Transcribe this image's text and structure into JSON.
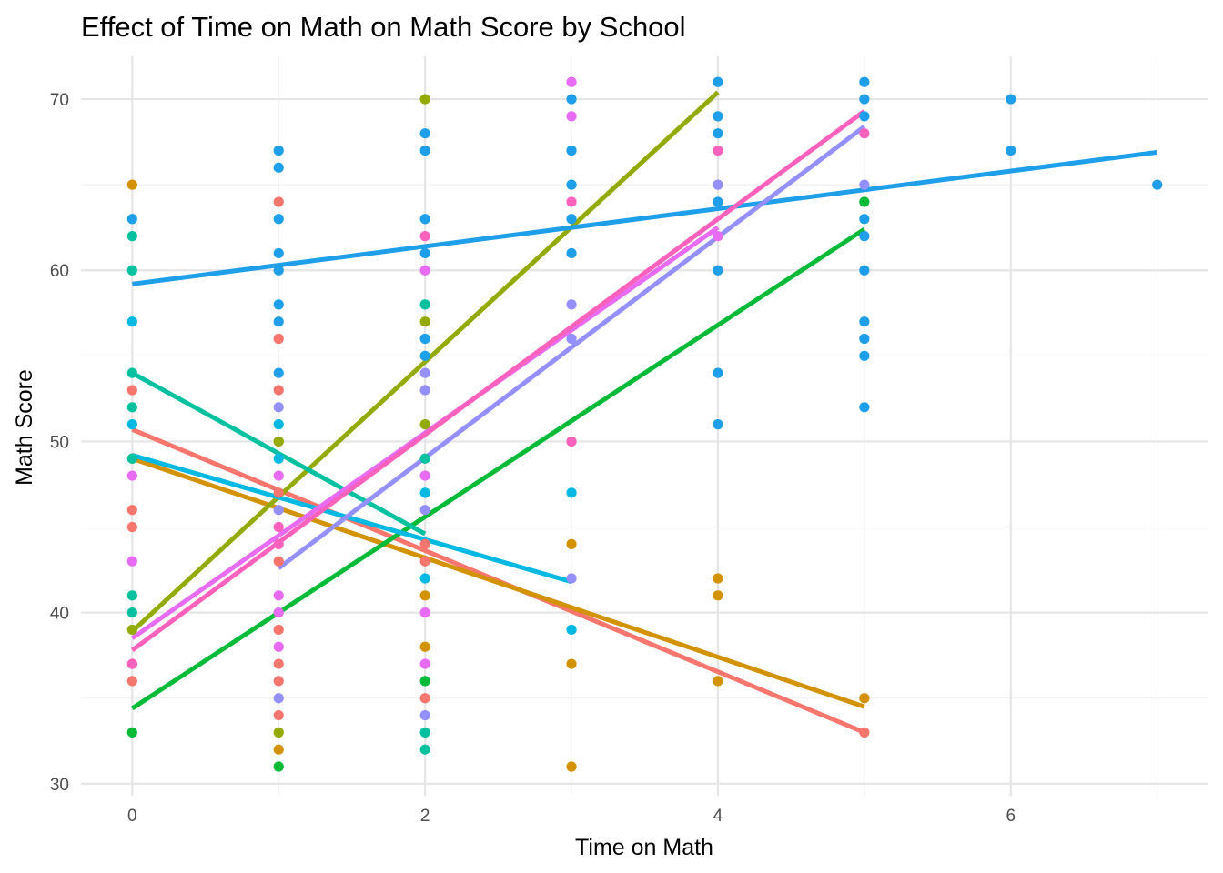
{
  "chart_data": {
    "type": "scatter",
    "title": "Effect of Time on Math on Math Score by School",
    "xlabel": "Time on Math",
    "ylabel": "Math Score",
    "xlim": [
      -0.35,
      7.35
    ],
    "ylim": [
      29.3,
      72.5
    ],
    "x_ticks": [
      0,
      2,
      4,
      6
    ],
    "y_ticks": [
      30,
      40,
      50,
      60,
      70
    ],
    "grid": true,
    "legend": "none",
    "series": [
      {
        "color": "#F8766D",
        "points": [
          [
            0,
            53
          ],
          [
            0,
            46
          ],
          [
            0,
            45
          ],
          [
            0,
            37
          ],
          [
            0,
            36
          ],
          [
            1,
            64
          ],
          [
            1,
            56
          ],
          [
            1,
            53
          ],
          [
            1,
            47
          ],
          [
            1,
            43
          ],
          [
            1,
            39
          ],
          [
            1,
            37
          ],
          [
            1,
            36
          ],
          [
            1,
            34
          ],
          [
            2,
            44
          ],
          [
            2,
            43
          ],
          [
            2,
            35
          ],
          [
            5,
            33
          ]
        ],
        "fit": [
          [
            0,
            50.7
          ],
          [
            5,
            33
          ]
        ]
      },
      {
        "color": "#D39200",
        "points": [
          [
            0,
            65
          ],
          [
            0,
            49
          ],
          [
            1,
            50
          ],
          [
            1,
            32
          ],
          [
            2,
            41
          ],
          [
            2,
            38
          ],
          [
            3,
            44
          ],
          [
            3,
            37
          ],
          [
            3,
            31
          ],
          [
            4,
            42
          ],
          [
            4,
            41
          ],
          [
            4,
            36
          ],
          [
            5,
            35
          ]
        ],
        "fit": [
          [
            0,
            49
          ],
          [
            5,
            34.5
          ]
        ]
      },
      {
        "color": "#93AA00",
        "points": [
          [
            0,
            39
          ],
          [
            1,
            50
          ],
          [
            1,
            33
          ],
          [
            2,
            70
          ],
          [
            2,
            57
          ],
          [
            2,
            51
          ]
        ],
        "fit": [
          [
            0,
            38.9
          ],
          [
            4,
            70.4
          ]
        ]
      },
      {
        "color": "#00BA38",
        "points": [
          [
            0,
            33
          ],
          [
            1,
            31
          ],
          [
            2,
            36
          ],
          [
            5,
            64
          ]
        ],
        "fit": [
          [
            0,
            34.4
          ],
          [
            5,
            62.4
          ]
        ]
      },
      {
        "color": "#00C19F",
        "points": [
          [
            0,
            62
          ],
          [
            0,
            60
          ],
          [
            0,
            54
          ],
          [
            0,
            52
          ],
          [
            0,
            49
          ],
          [
            0,
            41
          ],
          [
            0,
            40
          ],
          [
            2,
            58
          ],
          [
            2,
            49
          ],
          [
            2,
            33
          ],
          [
            2,
            32
          ]
        ],
        "fit": [
          [
            0,
            54
          ],
          [
            2,
            44.6
          ]
        ]
      },
      {
        "color": "#00B9E3",
        "points": [
          [
            0,
            57
          ],
          [
            0,
            51
          ],
          [
            1,
            51
          ],
          [
            1,
            49
          ],
          [
            2,
            47
          ],
          [
            2,
            42
          ],
          [
            3,
            47
          ],
          [
            3,
            39
          ]
        ],
        "fit": [
          [
            0,
            49.2
          ],
          [
            3,
            41.8
          ]
        ]
      },
      {
        "color": "#1F9EEA",
        "points": [
          [
            0,
            63
          ],
          [
            1,
            67
          ],
          [
            1,
            66
          ],
          [
            1,
            63
          ],
          [
            1,
            61
          ],
          [
            1,
            60
          ],
          [
            1,
            58
          ],
          [
            1,
            57
          ],
          [
            1,
            54
          ],
          [
            2,
            68
          ],
          [
            2,
            67
          ],
          [
            2,
            63
          ],
          [
            2,
            61
          ],
          [
            2,
            56
          ],
          [
            2,
            55
          ],
          [
            3,
            70
          ],
          [
            3,
            67
          ],
          [
            3,
            65
          ],
          [
            3,
            63
          ],
          [
            3,
            61
          ],
          [
            4,
            71
          ],
          [
            4,
            69
          ],
          [
            4,
            68
          ],
          [
            4,
            64
          ],
          [
            4,
            60
          ],
          [
            4,
            54
          ],
          [
            4,
            51
          ],
          [
            5,
            71
          ],
          [
            5,
            70
          ],
          [
            5,
            69
          ],
          [
            5,
            63
          ],
          [
            5,
            62
          ],
          [
            5,
            60
          ],
          [
            5,
            57
          ],
          [
            5,
            56
          ],
          [
            5,
            55
          ],
          [
            5,
            52
          ],
          [
            6,
            70
          ],
          [
            6,
            67
          ],
          [
            7,
            65
          ]
        ],
        "fit": [
          [
            0,
            59.2
          ],
          [
            7,
            66.9
          ]
        ]
      },
      {
        "color": "#9590FF",
        "points": [
          [
            1,
            52
          ],
          [
            1,
            46
          ],
          [
            1,
            35
          ],
          [
            2,
            54
          ],
          [
            2,
            53
          ],
          [
            2,
            46
          ],
          [
            2,
            34
          ],
          [
            3,
            58
          ],
          [
            3,
            56
          ],
          [
            3,
            42
          ],
          [
            4,
            65
          ],
          [
            5,
            65
          ]
        ],
        "fit": [
          [
            1,
            42.6
          ],
          [
            5,
            68.4
          ]
        ]
      },
      {
        "color": "#E76BF3",
        "points": [
          [
            0,
            48
          ],
          [
            0,
            43
          ],
          [
            1,
            48
          ],
          [
            1,
            41
          ],
          [
            1,
            40
          ],
          [
            1,
            38
          ],
          [
            2,
            60
          ],
          [
            2,
            48
          ],
          [
            2,
            40
          ],
          [
            2,
            37
          ],
          [
            3,
            71
          ],
          [
            3,
            69
          ],
          [
            4,
            62
          ]
        ],
        "fit": [
          [
            0,
            38.5
          ],
          [
            4,
            62.5
          ]
        ]
      },
      {
        "color": "#FF62BC",
        "points": [
          [
            0,
            37
          ],
          [
            1,
            45
          ],
          [
            1,
            44
          ],
          [
            2,
            62
          ],
          [
            3,
            64
          ],
          [
            3,
            50
          ],
          [
            4,
            67
          ],
          [
            5,
            68
          ]
        ],
        "fit": [
          [
            0,
            37.8
          ],
          [
            5,
            69.3
          ]
        ]
      }
    ]
  }
}
